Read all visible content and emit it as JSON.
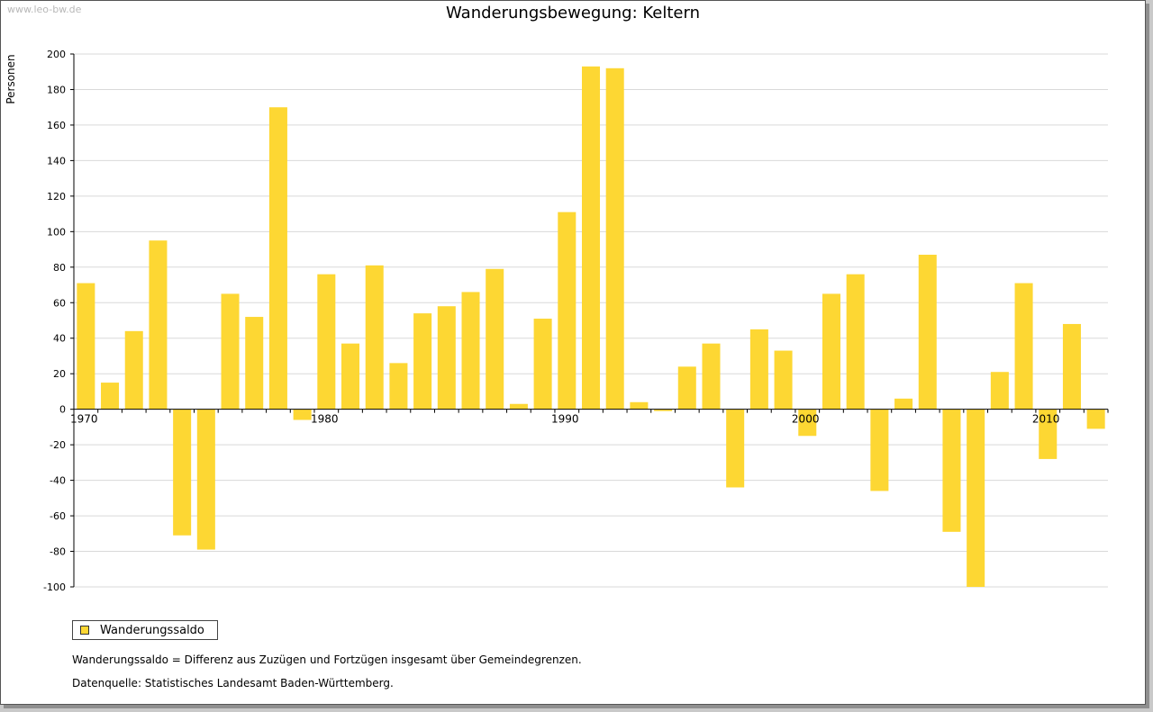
{
  "watermark": "www.leo-bw.de",
  "chart_data": {
    "type": "bar",
    "title": "Wanderungsbewegung: Keltern",
    "ylabel": "Personen",
    "xlabel": "",
    "ylim": [
      -100,
      200
    ],
    "yticks": [
      200,
      180,
      160,
      140,
      120,
      100,
      80,
      60,
      40,
      20,
      0,
      -20,
      -40,
      -60,
      -80,
      -100
    ],
    "grid": true,
    "xlim": [
      1969.5,
      2012.5
    ],
    "xticks": [
      1970,
      1980,
      1990,
      2000,
      2010
    ],
    "series": [
      {
        "name": "Wanderungssaldo",
        "color": "#fdd733",
        "x": [
          1970,
          1971,
          1972,
          1973,
          1974,
          1975,
          1976,
          1977,
          1978,
          1979,
          1980,
          1981,
          1982,
          1983,
          1984,
          1985,
          1986,
          1987,
          1988,
          1989,
          1990,
          1991,
          1992,
          1993,
          1994,
          1995,
          1996,
          1997,
          1998,
          1999,
          2000,
          2001,
          2002,
          2003,
          2004,
          2005,
          2006,
          2007,
          2008,
          2009,
          2010,
          2011,
          2012
        ],
        "values": [
          71,
          15,
          44,
          95,
          -71,
          -79,
          65,
          52,
          170,
          -6,
          76,
          37,
          81,
          26,
          54,
          58,
          66,
          79,
          3,
          51,
          111,
          193,
          192,
          4,
          -1,
          24,
          37,
          -44,
          45,
          33,
          -15,
          65,
          76,
          -46,
          6,
          87,
          -69,
          -100,
          21,
          71,
          -28,
          48,
          -11
        ]
      }
    ],
    "legend": "bottom-left"
  },
  "notes": {
    "definition": "Wanderungssaldo = Differenz aus Zuzügen und Fortzügen insgesamt über Gemeindegrenzen.",
    "source": "Datenquelle: Statistisches Landesamt Baden-Württemberg."
  }
}
